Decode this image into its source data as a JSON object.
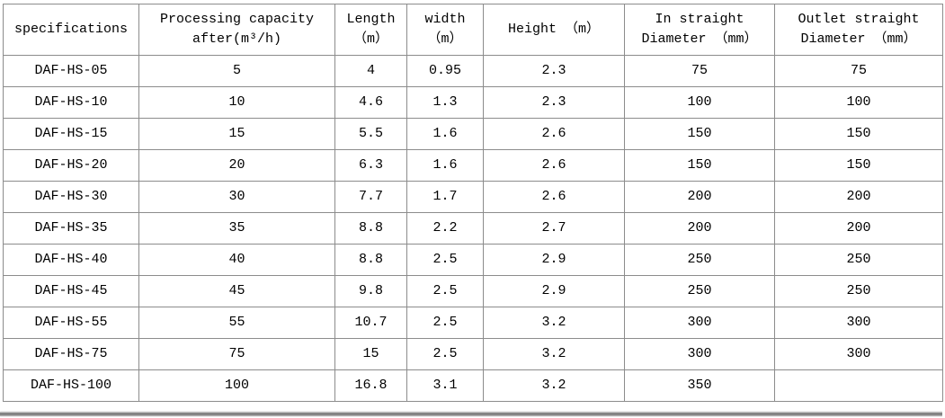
{
  "chart_data": {
    "type": "table",
    "title": "DAF-HS equipment specifications table",
    "columns": [
      "specifications",
      "Processing capacity after(m³/h)",
      "Length （m）",
      "width （m）",
      "Height （m）",
      "In straight Diameter （mm）",
      "Outlet straight Diameter （mm）"
    ],
    "header_lines": [
      "specifications",
      "Processing capacity\nafter(m³/h)",
      "Length\n（m）",
      "width\n（m）",
      "Height （m）",
      "In straight\nDiameter （mm）",
      "Outlet straight\nDiameter （mm）"
    ],
    "rows": [
      [
        "DAF-HS-05",
        "5",
        "4",
        "0.95",
        "2.3",
        "75",
        "75"
      ],
      [
        "DAF-HS-10",
        "10",
        "4.6",
        "1.3",
        "2.3",
        "100",
        "100"
      ],
      [
        "DAF-HS-15",
        "15",
        "5.5",
        "1.6",
        "2.6",
        "150",
        "150"
      ],
      [
        "DAF-HS-20",
        "20",
        "6.3",
        "1.6",
        "2.6",
        "150",
        "150"
      ],
      [
        "DAF-HS-30",
        "30",
        "7.7",
        "1.7",
        "2.6",
        "200",
        "200"
      ],
      [
        "DAF-HS-35",
        "35",
        "8.8",
        "2.2",
        "2.7",
        "200",
        "200"
      ],
      [
        "DAF-HS-40",
        "40",
        "8.8",
        "2.5",
        "2.9",
        "250",
        "250"
      ],
      [
        "DAF-HS-45",
        "45",
        "9.8",
        "2.5",
        "2.9",
        "250",
        "250"
      ],
      [
        "DAF-HS-55",
        "55",
        "10.7",
        "2.5",
        "3.2",
        "300",
        "300"
      ],
      [
        "DAF-HS-75",
        "75",
        "15",
        "2.5",
        "3.2",
        "300",
        "300"
      ],
      [
        "DAF-HS-100",
        "100",
        "16.8",
        "3.1",
        "3.2",
        "350",
        ""
      ]
    ],
    "layout": {
      "grid": true,
      "border_color": "#8c8c8c",
      "text_color": "#000000",
      "background_color": "#ffffff"
    }
  }
}
